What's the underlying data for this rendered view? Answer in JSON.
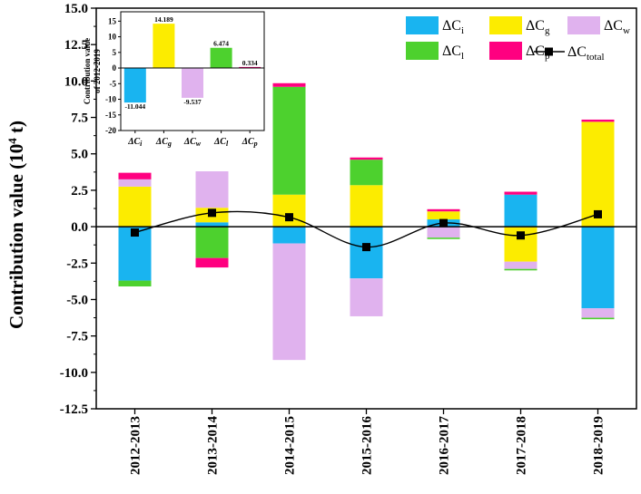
{
  "chart_data": {
    "type": "bar",
    "stacked": true,
    "ylabel_main": "Contribution value (10",
    "ylabel_exp": "4",
    "ylabel_unit": " t)",
    "ylim": [
      -12.5,
      15.0
    ],
    "yticks": [
      15.0,
      12.5,
      10.0,
      7.5,
      5.0,
      2.5,
      0.0,
      -2.5,
      -5.0,
      -7.5,
      -10.0,
      -12.5
    ],
    "ytick_labels": [
      "15.0",
      "12.5",
      "10.0",
      "7.5",
      "5.0",
      "2.5",
      "0.0",
      "-2.5",
      "-5.0",
      "-7.5",
      "-10.0",
      "-12.5"
    ],
    "categories": [
      "2012-2013",
      "2013-2014",
      "2014-2015",
      "2015-2016",
      "2016-2017",
      "2017-2018",
      "2018-2019"
    ],
    "series": [
      {
        "name": "ΔC",
        "sub": "i",
        "color": "#19b4f0",
        "values": [
          -3.7,
          0.3,
          -1.15,
          -3.55,
          0.5,
          2.2,
          -5.6
        ]
      },
      {
        "name": "ΔC",
        "sub": "g",
        "color": "#fcec00",
        "values": [
          2.75,
          1.0,
          2.2,
          2.85,
          0.55,
          -2.4,
          7.2
        ]
      },
      {
        "name": "ΔC",
        "sub": "w",
        "color": "#e0b2ee",
        "values": [
          0.5,
          2.5,
          -8.0,
          -2.6,
          -0.75,
          -0.5,
          -0.65
        ]
      },
      {
        "name": "ΔC",
        "sub": "l",
        "color": "#4dd12e",
        "values": [
          -0.4,
          -2.15,
          7.4,
          1.75,
          -0.1,
          -0.1,
          -0.1
        ]
      },
      {
        "name": "ΔC",
        "sub": "p",
        "color": "#ff0080",
        "values": [
          0.45,
          -0.65,
          0.25,
          0.15,
          0.15,
          0.2,
          0.15
        ]
      }
    ],
    "total": {
      "name": "ΔC",
      "sub": "total",
      "color": "#000000",
      "values": [
        -0.4,
        0.95,
        0.65,
        -1.4,
        0.25,
        -0.6,
        0.85
      ]
    },
    "inset": {
      "ylabel_line1": "Contribution value",
      "ylabel_line2": "of 2012-2019",
      "ylim": [
        -20,
        18
      ],
      "yticks": [
        15,
        10,
        5,
        0,
        -5,
        -10,
        -15,
        -20
      ],
      "ytick_labels": [
        "15",
        "10",
        "5",
        "0",
        "-5",
        "-10",
        "-15",
        "-20"
      ],
      "categories": [
        "ΔC",
        "ΔC",
        "ΔC",
        "ΔC",
        "ΔC"
      ],
      "category_subs": [
        "i",
        "g",
        "w",
        "l",
        "p"
      ],
      "colors": [
        "#19b4f0",
        "#fcec00",
        "#e0b2ee",
        "#4dd12e",
        "#ff0080"
      ],
      "values": [
        -11.044,
        14.189,
        -9.537,
        6.474,
        0.334
      ],
      "value_labels": [
        "-11.044",
        "14.189",
        "-9.537",
        "6.474",
        "0.334"
      ]
    }
  }
}
